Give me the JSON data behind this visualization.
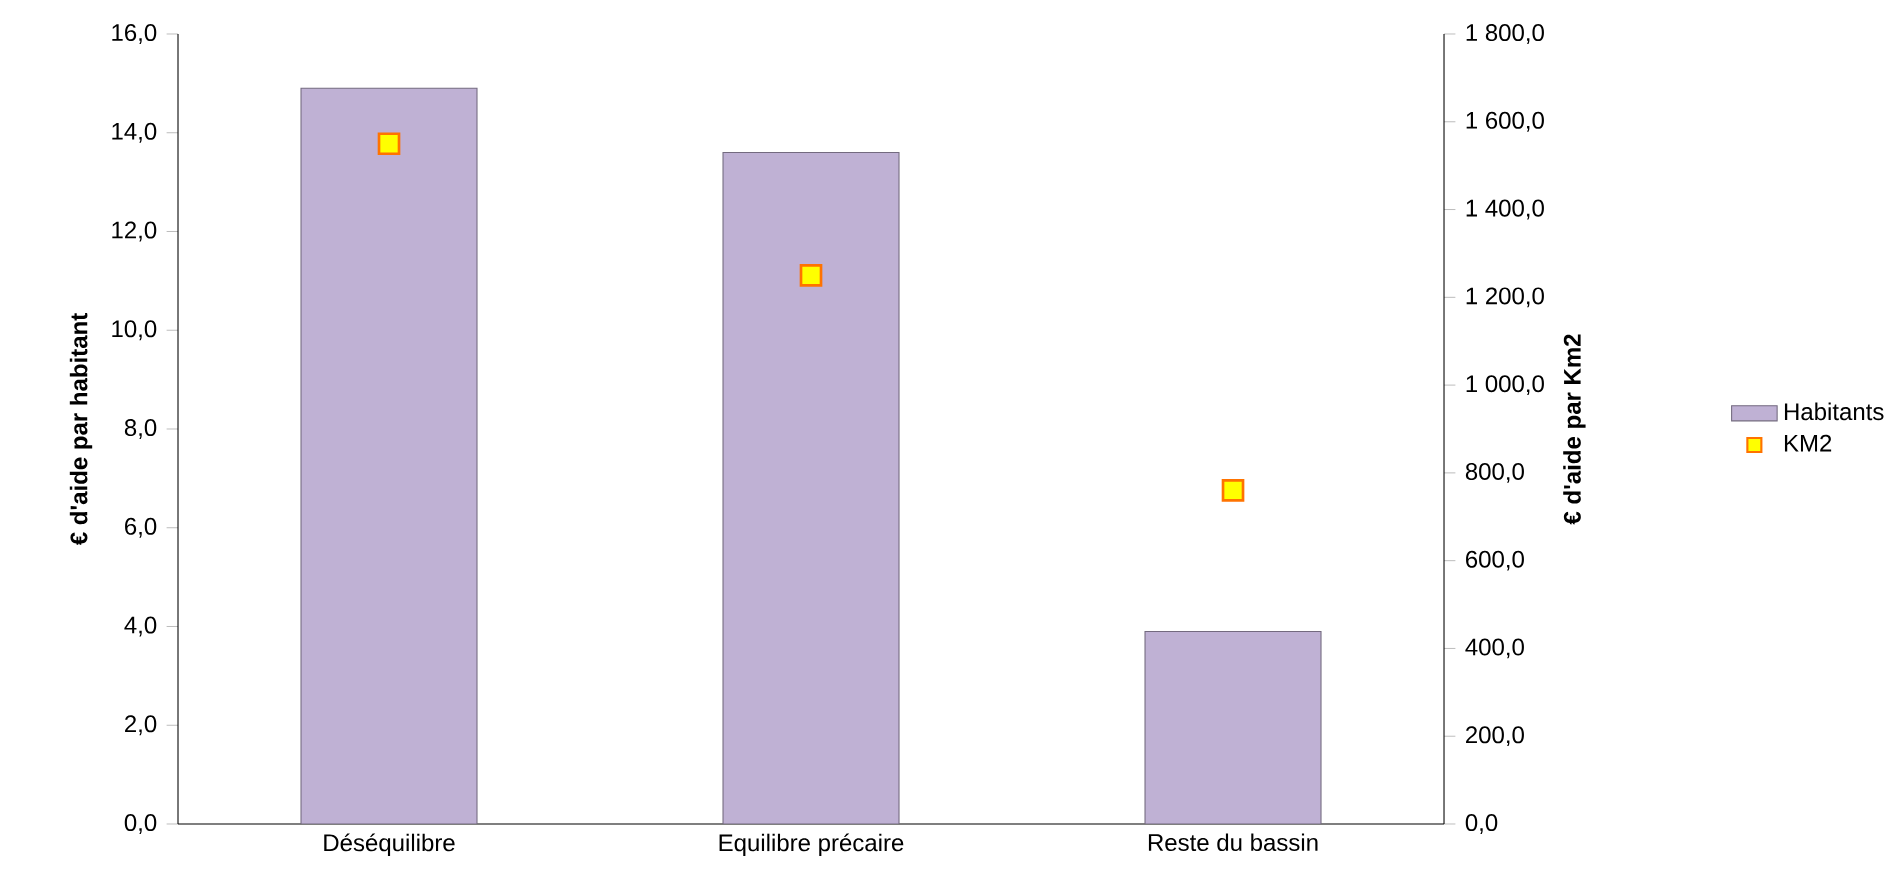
{
  "chart_data": {
    "type": "bar",
    "categories": [
      "Déséquilibre",
      "Equilibre précaire",
      "Reste du bassin"
    ],
    "series": [
      {
        "name": "Habitants",
        "color": "#bfb1d4",
        "values": [
          14.9,
          13.6,
          3.9
        ]
      },
      {
        "name": "KM2",
        "type": "scatter",
        "axis": "y2",
        "color": "#ffff00",
        "marker": "square",
        "values": [
          1550,
          1250,
          760
        ]
      }
    ],
    "ylabel": "€ d'aide par habitant",
    "y2label": "€ d'aide par Km2",
    "ylim": [
      0,
      16
    ],
    "yticks": [
      {
        "value": 0,
        "label": "0,0"
      },
      {
        "value": 2,
        "label": "2,0"
      },
      {
        "value": 4,
        "label": "4,0"
      },
      {
        "value": 6,
        "label": "6,0"
      },
      {
        "value": 8,
        "label": "8,0"
      },
      {
        "value": 10,
        "label": "10,0"
      },
      {
        "value": 12,
        "label": "12,0"
      },
      {
        "value": 14,
        "label": "14,0"
      },
      {
        "value": 16,
        "label": "16,0"
      }
    ],
    "y2lim": [
      0,
      1800
    ],
    "y2ticks": [
      {
        "value": 0,
        "label": "0,0"
      },
      {
        "value": 200,
        "label": "200,0"
      },
      {
        "value": 400,
        "label": "400,0"
      },
      {
        "value": 600,
        "label": "600,0"
      },
      {
        "value": 800,
        "label": "800,0"
      },
      {
        "value": 1000,
        "label": "1 000,0"
      },
      {
        "value": 1200,
        "label": "1 200,0"
      },
      {
        "value": 1400,
        "label": "1 400,0"
      },
      {
        "value": 1600,
        "label": "1 600,0"
      },
      {
        "value": 1800,
        "label": "1 800,0"
      }
    ],
    "grid": false,
    "legend": "right"
  }
}
